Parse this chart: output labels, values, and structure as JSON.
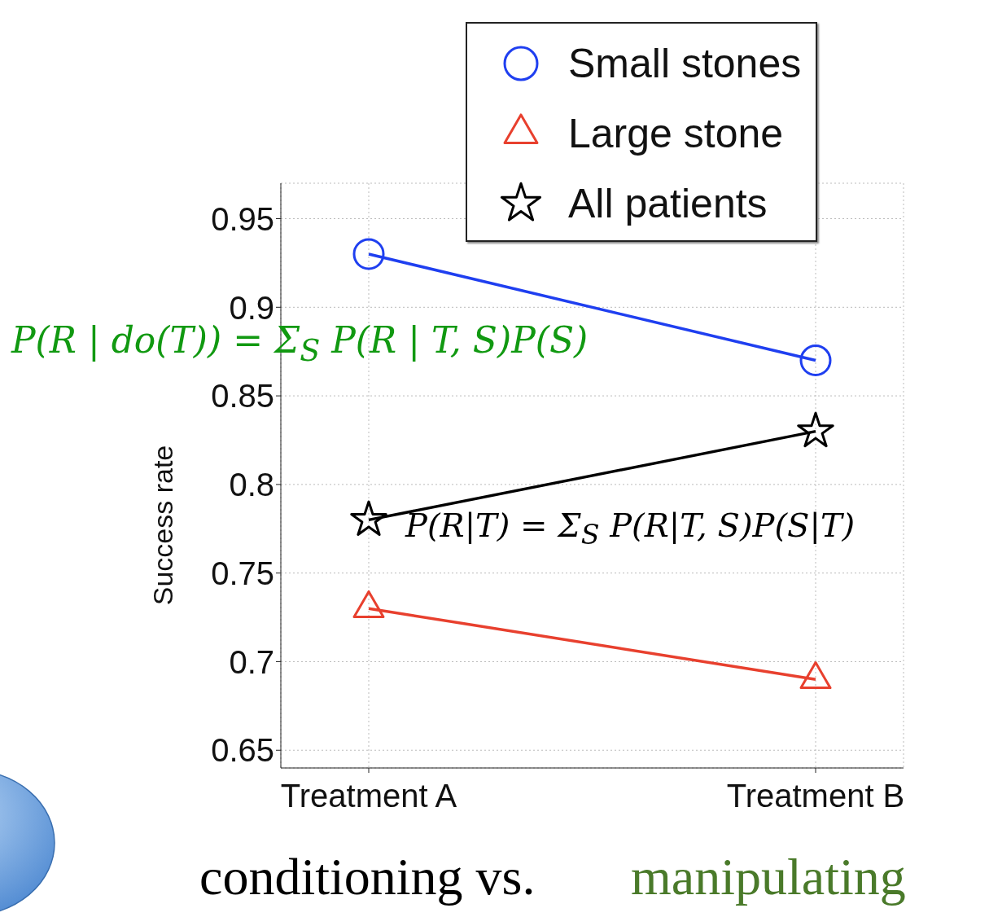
{
  "chart_data": {
    "type": "line",
    "categories": [
      "Treatment A",
      "Treatment B"
    ],
    "ylabel": "Success rate",
    "ylim": [
      0.64,
      0.97
    ],
    "yticks": [
      0.65,
      0.7,
      0.75,
      0.8,
      0.85,
      0.9,
      0.95
    ],
    "grid": true,
    "legend": "top right",
    "series": [
      {
        "name": "Small stones",
        "color": "#1f3ff0",
        "values": [
          0.93,
          0.87
        ],
        "marker": "circle"
      },
      {
        "name": "Large stone",
        "color": "#e8402e",
        "values": [
          0.73,
          0.69
        ],
        "marker": "triangle"
      },
      {
        "name": "All patients",
        "color": "#000000",
        "values": [
          0.78,
          0.83
        ],
        "marker": "star"
      }
    ],
    "annotations": [
      "P(R | do(T)) = Σ$_{S}$ P(R | T, S)P(S)",
      "P(R|T) = Σ$_{S}$ P(R|T, S)P(S|T)",
      "conditioning vs.",
      "manipulating"
    ]
  }
}
